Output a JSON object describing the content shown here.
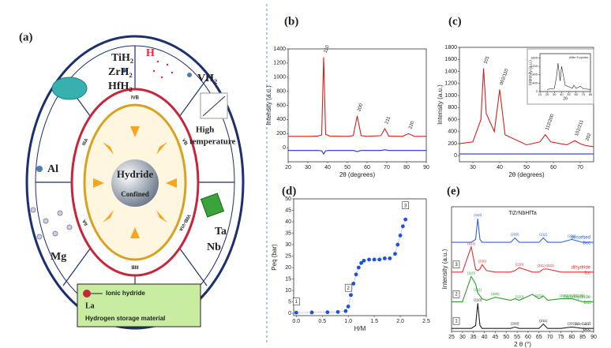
{
  "diagram": {
    "label": "(a)",
    "hydrides": [
      "TiH₂",
      "ZrH₂",
      "HfH₂"
    ],
    "h_label": "H",
    "vh2": "VH₂",
    "high": "High",
    "temperature": "temperature",
    "al": "Al",
    "mg": "Mg",
    "ta": "Ta",
    "nb": "Nb",
    "center": "Hydride",
    "confined": "Confined",
    "ring_labels": [
      "IVB",
      "VB",
      "VIIB-VIA",
      "IIIB",
      "IIA",
      "IIIA"
    ],
    "legend_ionic": "Ionic hydride",
    "legend_la": "La",
    "legend_storage": "Hydrogen storage material"
  },
  "chart_data": [
    {
      "type": "line",
      "label": "(b)",
      "xlabel": "2θ (degrees)",
      "ylabel": "Intensity (a.u.)",
      "x": [
        20,
        30,
        35,
        37,
        38,
        39,
        41,
        50,
        53,
        55,
        57,
        60,
        67,
        69,
        71,
        78,
        81,
        84,
        90
      ],
      "series": [
        {
          "color": "#d42020",
          "values": [
            160,
            160,
            165,
            180,
            1280,
            190,
            165,
            160,
            170,
            450,
            170,
            160,
            170,
            270,
            165,
            160,
            200,
            160,
            160
          ]
        },
        {
          "color": "#2030d0",
          "values": [
            -40,
            -40,
            -40,
            -45,
            -90,
            -45,
            -40,
            -40,
            -40,
            -55,
            -40,
            -40,
            -40,
            -30,
            -40,
            -40,
            -40,
            -40,
            -40
          ]
        }
      ],
      "annotations": [
        {
          "text": "110",
          "x": 38,
          "y": 1280
        },
        {
          "text": "200",
          "x": 55,
          "y": 450
        },
        {
          "text": "211",
          "x": 69,
          "y": 270
        },
        {
          "text": "220",
          "x": 81,
          "y": 200
        }
      ],
      "xlim": [
        20,
        90
      ],
      "xticks": [
        20,
        30,
        40,
        50,
        60,
        70,
        80,
        90
      ],
      "ylim": [
        -200,
        1400
      ],
      "yticks": [
        0,
        200,
        400,
        600,
        800,
        1000,
        1200,
        1400
      ]
    },
    {
      "type": "line",
      "label": "(c)",
      "xlabel": "2θ (degrees)",
      "ylabel": "Intensity (a.u.)",
      "x": [
        25,
        30,
        33,
        34,
        35,
        38,
        40,
        42,
        50,
        55,
        57,
        59,
        65,
        68,
        70,
        72,
        75
      ],
      "series": [
        {
          "color": "#d42020",
          "values": [
            200,
            230,
            600,
            1450,
            700,
            400,
            1100,
            350,
            180,
            230,
            350,
            230,
            180,
            250,
            200,
            170,
            150
          ]
        },
        {
          "color": "#2030d0",
          "values": [
            30,
            30,
            30,
            30,
            30,
            30,
            30,
            30,
            30,
            30,
            30,
            30,
            30,
            30,
            30,
            30,
            30
          ]
        }
      ],
      "annotations": [
        {
          "text": "101",
          "x": 34,
          "y": 1450
        },
        {
          "text": "002/110",
          "x": 40,
          "y": 1100
        },
        {
          "text": "112/200",
          "x": 57,
          "y": 350
        },
        {
          "text": "102/211",
          "x": 68,
          "y": 250
        },
        {
          "text": "202",
          "x": 72,
          "y": 170
        }
      ],
      "xlim": [
        25,
        75
      ],
      "xticks": [
        30,
        40,
        50,
        60,
        70
      ],
      "ylim": [
        -100,
        1800
      ],
      "yticks": [
        0,
        200,
        400,
        600,
        800,
        1000,
        1200,
        1400,
        1600,
        1800
      ]
    },
    {
      "type": "line",
      "xlabel": "2θ",
      "ylabel": "Intensity (a.u.)",
      "note": "After 5 cycles",
      "x": [
        20,
        30,
        33,
        35,
        38,
        40,
        45,
        55,
        57,
        60,
        66,
        70,
        80
      ],
      "series": [
        {
          "color": "#222222",
          "values": [
            100,
            150,
            700,
            1350,
            500,
            1200,
            300,
            150,
            300,
            150,
            250,
            130,
            100
          ]
        }
      ],
      "xlim": [
        10,
        80
      ],
      "xticks": [
        10,
        20,
        30,
        40,
        50,
        60,
        70,
        80
      ],
      "ylim": [
        0,
        1800
      ],
      "yticks": [
        0,
        400,
        800,
        1200,
        1600
      ]
    },
    {
      "type": "scatter",
      "label": "(d)",
      "xlabel": "H/M",
      "ylabel": "Peq (bar)",
      "color": "#1f4fe0",
      "x": [
        0,
        0.3,
        0.6,
        0.8,
        0.95,
        1.0,
        1.05,
        1.1,
        1.15,
        1.2,
        1.25,
        1.3,
        1.4,
        1.5,
        1.6,
        1.7,
        1.8,
        1.9,
        1.95,
        2.0,
        2.05,
        2.1
      ],
      "values": [
        0.3,
        0.4,
        0.5,
        0.6,
        1,
        3,
        8,
        13,
        17,
        20,
        22,
        23,
        23.5,
        23.5,
        23.5,
        24,
        24,
        26,
        30,
        34,
        38,
        41
      ],
      "annotations": [
        {
          "text": "1",
          "x": 0,
          "y": 5
        },
        {
          "text": "2",
          "x": 1.0,
          "y": 11
        },
        {
          "text": "3",
          "x": 2.1,
          "y": 47
        }
      ],
      "xlim": [
        -0.05,
        2.5
      ],
      "xticks": [
        {
          "value": 0,
          "label": "0.0"
        },
        0.5,
        {
          "value": 1,
          "label": "1.0"
        },
        1.5,
        {
          "value": 2,
          "label": "2.0"
        },
        2.5
      ],
      "ylim": [
        -1,
        50
      ],
      "yticks": [
        0,
        5,
        10,
        15,
        20,
        25,
        30,
        35,
        40,
        45,
        50
      ]
    },
    {
      "type": "line",
      "label": "(e)",
      "title": "TiZrNbHfTa",
      "xlabel": "2 θ (°)",
      "ylabel": "Intensity (a.u.)",
      "x": [
        25,
        30,
        34,
        36,
        37,
        38,
        39,
        41,
        45,
        52,
        54,
        56,
        62,
        65,
        67,
        69,
        75,
        80,
        85,
        90
      ],
      "series": [
        {
          "name": "as-cast",
          "phase": "bcc",
          "tag": "1",
          "color": "#222222",
          "values": [
            0.1,
            0.1,
            0.1,
            0.2,
            0.95,
            0.2,
            0.1,
            0.1,
            0.1,
            0.1,
            0.15,
            0.1,
            0.1,
            0.1,
            0.25,
            0.1,
            0.1,
            0.15,
            0.1,
            0.1
          ],
          "peak_labels": [
            {
              "text": "(110)",
              "x": 37
            },
            {
              "text": "(200)",
              "x": 54
            },
            {
              "text": "(211)",
              "x": 67
            },
            {
              "text": "(202)",
              "x": 80
            }
          ]
        },
        {
          "name": "monohydride",
          "phase": "bct",
          "tag": "2",
          "color": "#2ca02c",
          "values": [
            1.0,
            1.0,
            1.85,
            1.6,
            1.3,
            1.2,
            1.1,
            1.05,
            1.15,
            1.05,
            1.1,
            1.05,
            1.25,
            1.1,
            1.2,
            1.05,
            1.1,
            1.1,
            1.0,
            1.0
          ],
          "peak_labels": [
            {
              "text": "(110)",
              "x": 34
            },
            {
              "text": "(211)",
              "x": 37
            },
            {
              "text": "(200)",
              "x": 45
            },
            {
              "text": "(220)",
              "x": 56
            },
            {
              "text": "(121)",
              "x": 65
            },
            {
              "text": "(202)(310)(222)",
              "x": 80
            }
          ]
        },
        {
          "name": "dihydride",
          "phase": "fcc",
          "tag": "3",
          "color": "#e03030",
          "values": [
            2.0,
            2.0,
            2.85,
            2.1,
            2.05,
            2.1,
            2.25,
            2.05,
            2.0,
            2.0,
            2.05,
            2.15,
            2.0,
            2.0,
            2.1,
            2.1,
            2.0,
            2.0,
            2.0,
            2.0
          ],
          "peak_labels": [
            {
              "text": "(111)",
              "x": 34
            },
            {
              "text": "(200)",
              "x": 39
            },
            {
              "text": "(220)",
              "x": 56
            },
            {
              "text": "(311)",
              "x": 66
            },
            {
              "text": "(222)",
              "x": 70
            }
          ]
        },
        {
          "name": "desorbed",
          "phase": "bcc",
          "color": "#3060e0",
          "values": [
            3.0,
            3.0,
            3.0,
            3.1,
            3.8,
            3.1,
            3.0,
            3.0,
            3.0,
            3.0,
            3.15,
            3.0,
            3.0,
            3.0,
            3.15,
            3.0,
            3.0,
            3.1,
            3.0,
            3.0
          ],
          "peak_labels": [
            {
              "text": "(110)",
              "x": 37
            },
            {
              "text": "(200)",
              "x": 54
            },
            {
              "text": "(211)",
              "x": 67
            },
            {
              "text": "(202)",
              "x": 80
            }
          ]
        }
      ],
      "xlim": [
        25,
        90
      ],
      "xticks": [
        25,
        30,
        35,
        40,
        45,
        50,
        55,
        60,
        65,
        70,
        75,
        80,
        85,
        90
      ],
      "ylim": [
        0,
        4.2
      ]
    }
  ]
}
